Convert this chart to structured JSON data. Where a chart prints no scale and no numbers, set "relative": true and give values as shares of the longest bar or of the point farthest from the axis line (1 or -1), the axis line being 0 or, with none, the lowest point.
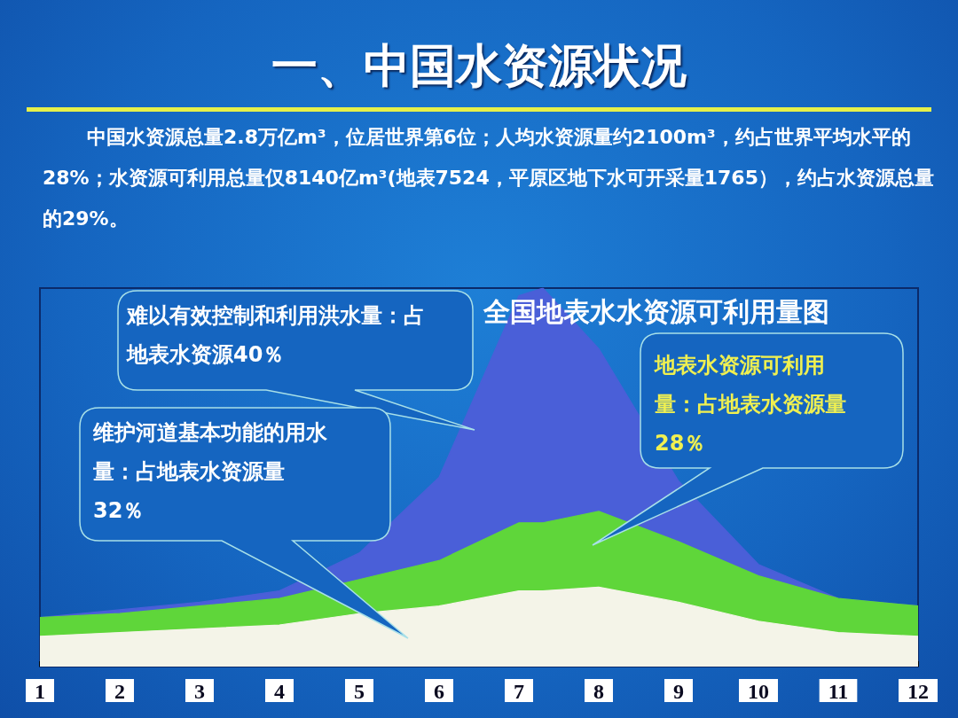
{
  "chart_data": {
    "type": "area",
    "title": "一、中国水资源状况",
    "subtitle": "中国水资源总量2.8万亿m³，位居世界第6位；人均水资源量约2100m³，约占世界平均水平的28%；水资源可利用总量仅8140亿m³(地表7524，平原区地下水可开采量1765），约占水资源总量的29%。",
    "annotations": [
      "全国地表水水资源可利用量图",
      "难以有效控制和利用洪水量：占地表水资源40％",
      "维护河道基本功能的用水量：占地表水资源量32％",
      "地表水资源可利用量：占地表水资源量28％"
    ],
    "relative": true,
    "stacked": true,
    "grid": false,
    "marker": "none",
    "x": [
      1,
      2,
      3,
      4,
      5,
      6,
      7,
      7.3,
      8,
      9,
      10,
      11,
      12
    ],
    "xlim": [
      1,
      12
    ],
    "xticks": [
      1,
      2,
      3,
      4,
      5,
      6,
      7,
      8,
      9,
      10,
      11,
      12
    ],
    "series": [
      {
        "color": "#f4f4e8",
        "values": [
          0.08,
          0.09,
          0.1,
          0.11,
          0.14,
          0.16,
          0.2,
          0.2,
          0.21,
          0.17,
          0.12,
          0.09,
          0.08
        ]
      },
      {
        "color": "#5fd63a",
        "values": [
          0.05,
          0.05,
          0.06,
          0.07,
          0.09,
          0.12,
          0.18,
          0.18,
          0.2,
          0.16,
          0.12,
          0.09,
          0.08
        ]
      },
      {
        "color": "#4a5fd8",
        "values": [
          0.0,
          0.01,
          0.01,
          0.02,
          0.07,
          0.22,
          0.6,
          0.62,
          0.43,
          0.16,
          0.03,
          0.0,
          0.0
        ]
      }
    ]
  }
}
